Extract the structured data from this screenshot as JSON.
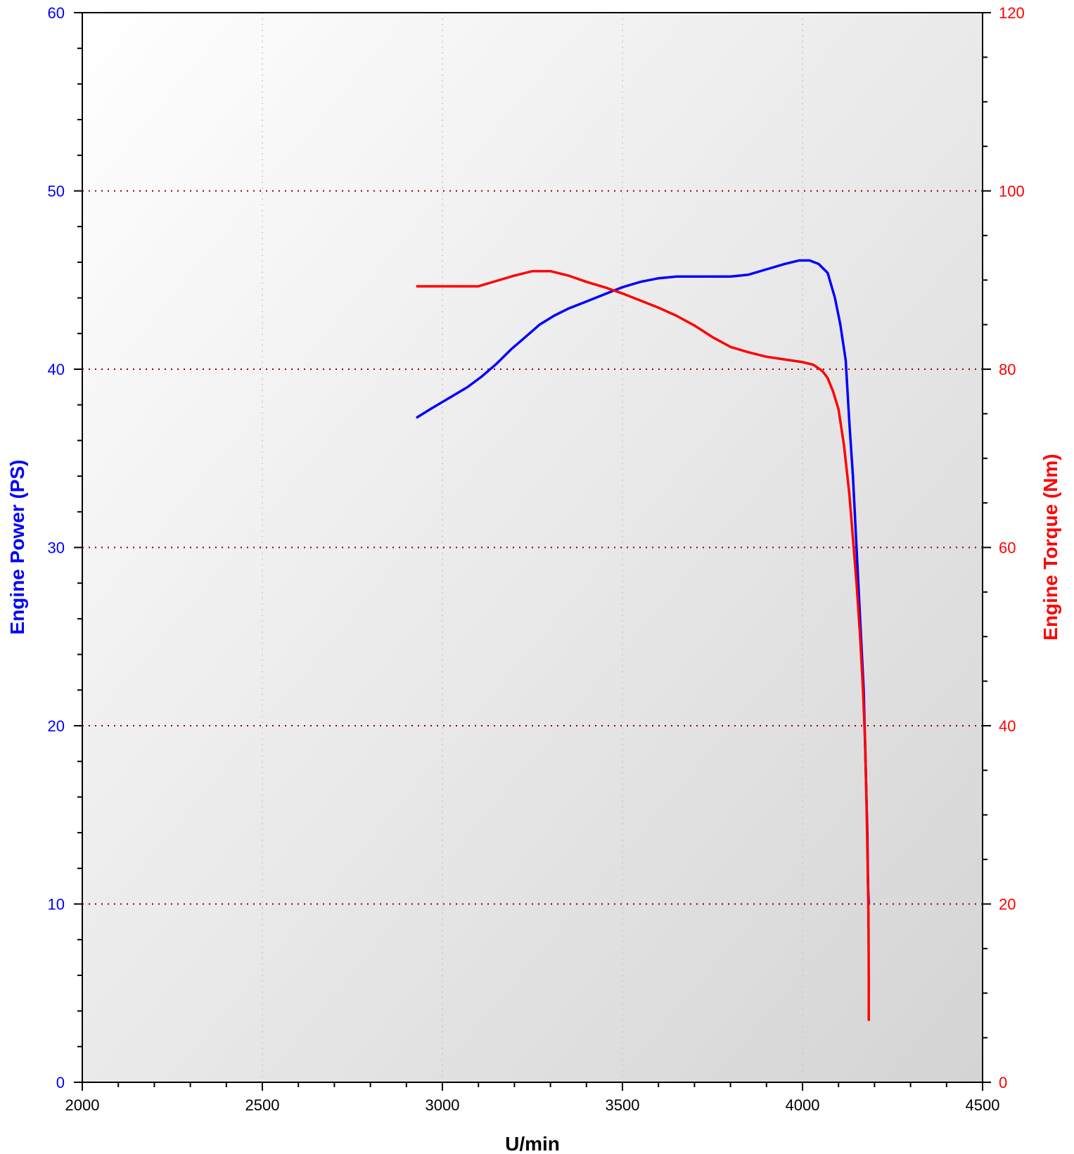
{
  "chart_data": {
    "type": "line",
    "xlabel": "U/min",
    "ylabel_left": "Engine Power (PS)",
    "ylabel_right": "Engine Torque (Nm)",
    "xlim": [
      2000,
      4500
    ],
    "ylim_left": [
      0,
      60
    ],
    "ylim_right": [
      0,
      120
    ],
    "x_ticks": [
      2000,
      2500,
      3000,
      3500,
      4000,
      4500
    ],
    "y_ticks_left": [
      0,
      10,
      20,
      30,
      40,
      50,
      60
    ],
    "y_ticks_right": [
      0,
      20,
      40,
      60,
      80,
      100,
      120
    ],
    "grid": "horizontal dotted at major y ticks, vertical dotted at major x ticks",
    "colors": {
      "power": "#0000ff",
      "torque": "#ff0000",
      "grid_h": "#8b0000",
      "grid_v": "#c8c8c8"
    },
    "series": [
      {
        "axis": "left",
        "color": "#0000ff",
        "points": [
          [
            2930,
            37.3
          ],
          [
            2970,
            37.8
          ],
          [
            3020,
            38.4
          ],
          [
            3070,
            39.0
          ],
          [
            3110,
            39.6
          ],
          [
            3150,
            40.3
          ],
          [
            3190,
            41.1
          ],
          [
            3230,
            41.8
          ],
          [
            3270,
            42.5
          ],
          [
            3310,
            43.0
          ],
          [
            3350,
            43.4
          ],
          [
            3400,
            43.8
          ],
          [
            3450,
            44.2
          ],
          [
            3500,
            44.6
          ],
          [
            3550,
            44.9
          ],
          [
            3600,
            45.1
          ],
          [
            3650,
            45.2
          ],
          [
            3700,
            45.2
          ],
          [
            3740,
            45.2
          ],
          [
            3770,
            45.2
          ],
          [
            3800,
            45.2
          ],
          [
            3850,
            45.3
          ],
          [
            3900,
            45.6
          ],
          [
            3950,
            45.9
          ],
          [
            3990,
            46.1
          ],
          [
            4020,
            46.1
          ],
          [
            4045,
            45.9
          ],
          [
            4070,
            45.4
          ],
          [
            4090,
            44.0
          ],
          [
            4105,
            42.5
          ],
          [
            4120,
            40.5
          ],
          [
            4130,
            37.0
          ],
          [
            4140,
            34.0
          ],
          [
            4150,
            30.0
          ],
          [
            4160,
            26.0
          ],
          [
            4170,
            22.0
          ],
          [
            4175,
            18.0
          ],
          [
            4180,
            14.0
          ],
          [
            4182,
            11.0
          ],
          [
            4184,
            10.0
          ]
        ]
      },
      {
        "axis": "right",
        "color": "#ff0000",
        "points": [
          [
            2930,
            89.3
          ],
          [
            3000,
            89.3
          ],
          [
            3100,
            89.3
          ],
          [
            3150,
            89.9
          ],
          [
            3200,
            90.5
          ],
          [
            3250,
            91.0
          ],
          [
            3300,
            91.0
          ],
          [
            3350,
            90.5
          ],
          [
            3400,
            89.8
          ],
          [
            3450,
            89.2
          ],
          [
            3500,
            88.5
          ],
          [
            3550,
            87.7
          ],
          [
            3600,
            86.9
          ],
          [
            3650,
            86.0
          ],
          [
            3700,
            84.9
          ],
          [
            3750,
            83.6
          ],
          [
            3800,
            82.5
          ],
          [
            3850,
            81.9
          ],
          [
            3900,
            81.4
          ],
          [
            3950,
            81.1
          ],
          [
            4000,
            80.8
          ],
          [
            4030,
            80.5
          ],
          [
            4055,
            79.8
          ],
          [
            4070,
            79.0
          ],
          [
            4085,
            77.5
          ],
          [
            4100,
            75.5
          ],
          [
            4115,
            71.5
          ],
          [
            4130,
            66.0
          ],
          [
            4140,
            61.0
          ],
          [
            4150,
            56.0
          ],
          [
            4160,
            50.0
          ],
          [
            4168,
            44.0
          ],
          [
            4174,
            38.0
          ],
          [
            4178,
            31.0
          ],
          [
            4181,
            24.0
          ],
          [
            4183,
            19.0
          ],
          [
            4184,
            12.0
          ],
          [
            4184,
            7.0
          ]
        ]
      }
    ]
  }
}
